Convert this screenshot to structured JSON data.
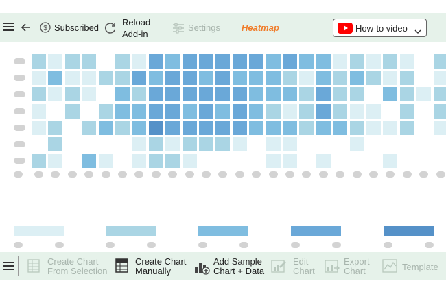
{
  "toolbar_top": {
    "subscribed_label": "Subscribed",
    "reload_label_line1": "Reload",
    "reload_label_line2": "Add-in",
    "settings_label": "Settings",
    "heatmap_label": "Heatmap",
    "howto_label": "How-to video"
  },
  "toolbar_bottom": {
    "create_from_selection_line1": "Create Chart",
    "create_from_selection_line2": "From Selection",
    "create_manually_line1": "Create Chart",
    "create_manually_line2": "Manually",
    "add_sample_line1": "Add Sample",
    "add_sample_line2": "Chart + Data",
    "edit_chart_line1": "Edit",
    "edit_chart_line2": "Chart",
    "export_chart_line1": "Export",
    "export_chart_line2": "Chart",
    "template_label": "Template"
  },
  "colors": {
    "toolbar_bg": "#e6f2ea",
    "heatmap_title": "#f07c2a",
    "youtube_red": "#ff0000",
    "disabled_text": "#a8b5ad",
    "level_1": "#dceff4",
    "level_2": "#aad5e4",
    "level_3": "#7fbde0",
    "level_4": "#6aa8d8",
    "level_5": "#5591c8"
  },
  "chart_data": {
    "type": "heatmap",
    "rows": 7,
    "columns": 25,
    "levels": [
      [
        2,
        1,
        2,
        2,
        0,
        2,
        1,
        4,
        3,
        4,
        4,
        4,
        4,
        4,
        3,
        4,
        3,
        3,
        1,
        2,
        1,
        2,
        1,
        0,
        2
      ],
      [
        1,
        3,
        1,
        1,
        2,
        2,
        4,
        3,
        4,
        4,
        3,
        4,
        3,
        3,
        3,
        2,
        1,
        3,
        2,
        3,
        2,
        1,
        2,
        0,
        1
      ],
      [
        2,
        1,
        2,
        1,
        0,
        3,
        2,
        4,
        4,
        4,
        4,
        4,
        4,
        3,
        3,
        3,
        2,
        4,
        2,
        2,
        0,
        3,
        2,
        1,
        2
      ],
      [
        1,
        0,
        2,
        0,
        2,
        3,
        3,
        4,
        4,
        3,
        4,
        3,
        4,
        3,
        2,
        1,
        2,
        4,
        2,
        1,
        1,
        0,
        2,
        0,
        2
      ],
      [
        1,
        2,
        0,
        2,
        3,
        2,
        3,
        5,
        4,
        4,
        4,
        4,
        4,
        3,
        3,
        3,
        2,
        3,
        3,
        2,
        1,
        1,
        2,
        0,
        1
      ],
      [
        0,
        2,
        0,
        0,
        0,
        0,
        1,
        2,
        1,
        2,
        2,
        2,
        1,
        0,
        1,
        1,
        0,
        0,
        0,
        1,
        0,
        0,
        0,
        0,
        0
      ],
      [
        2,
        1,
        0,
        3,
        1,
        0,
        1,
        2,
        2,
        1,
        0,
        0,
        0,
        0,
        1,
        1,
        0,
        1,
        0,
        0,
        0,
        1,
        0,
        0,
        0
      ]
    ],
    "legend_levels": 5,
    "legend_position": "bottom"
  }
}
